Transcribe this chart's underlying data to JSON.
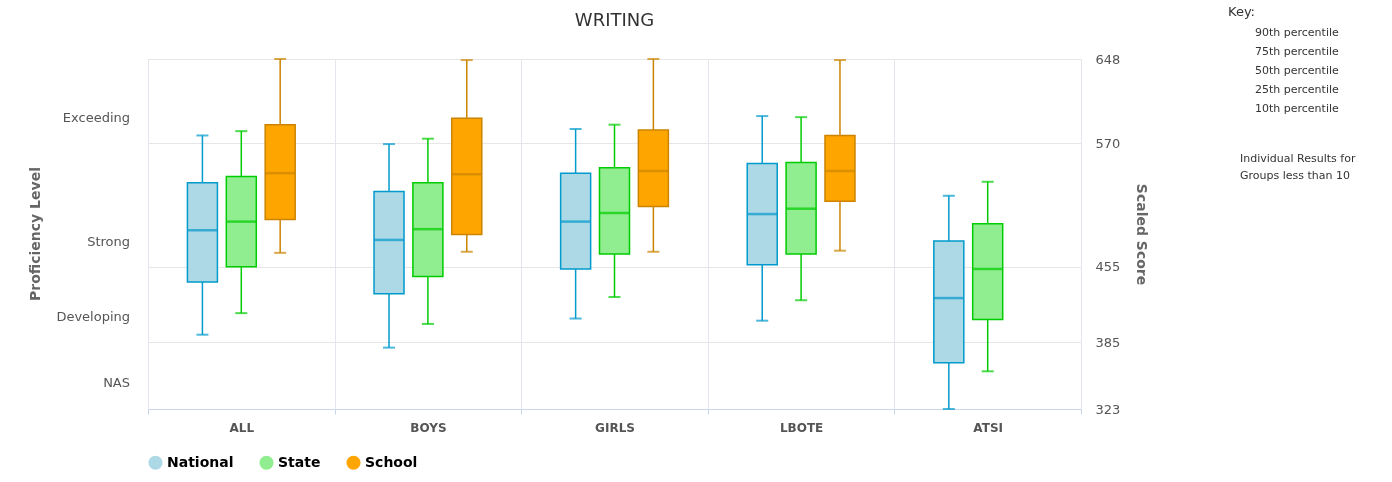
{
  "chart_data": {
    "type": "box",
    "title": "WRITING",
    "y2label": "Scaled Score",
    "categories": [
      "ALL",
      "BOYS",
      "GIRLS",
      "LBOTE",
      "ATSI"
    ],
    "series": [
      {
        "name": "National",
        "color": "#add8e6",
        "boxes": [
          {
            "low": 392,
            "q1": 441,
            "median": 489,
            "q3": 533,
            "high": 577
          },
          {
            "low": 380,
            "q1": 430,
            "median": 480,
            "q3": 525,
            "high": 569
          },
          {
            "low": 407,
            "q1": 453,
            "median": 497,
            "q3": 542,
            "high": 583
          },
          {
            "low": 405,
            "q1": 457,
            "median": 504,
            "q3": 551,
            "high": 595
          },
          {
            "low": 323,
            "q1": 366,
            "median": 426,
            "q3": 479,
            "high": 521
          }
        ]
      },
      {
        "name": "State",
        "color": "#90ee90",
        "boxes": [
          {
            "low": 412,
            "q1": 455,
            "median": 497,
            "q3": 539,
            "high": 581
          },
          {
            "low": 402,
            "q1": 446,
            "median": 490,
            "q3": 533,
            "high": 574
          },
          {
            "low": 427,
            "q1": 467,
            "median": 505,
            "q3": 547,
            "high": 587
          },
          {
            "low": 424,
            "q1": 467,
            "median": 509,
            "q3": 552,
            "high": 594
          },
          {
            "low": 358,
            "q1": 406,
            "median": 453,
            "q3": 495,
            "high": 534
          }
        ]
      },
      {
        "name": "School",
        "color": "#ffa500",
        "boxes": [
          {
            "low": 468,
            "q1": 499,
            "median": 542,
            "q3": 587,
            "high": 648
          },
          {
            "low": 469,
            "q1": 485,
            "median": 541,
            "q3": 593,
            "high": 647
          },
          {
            "low": 469,
            "q1": 511,
            "median": 544,
            "q3": 582,
            "high": 648
          },
          {
            "low": 470,
            "q1": 516,
            "median": 544,
            "q3": 577,
            "high": 647
          },
          null
        ]
      }
    ],
    "ylim": [
      323,
      648
    ],
    "yticks": [
      323,
      385,
      455,
      570,
      648
    ],
    "grid": true,
    "legend": "bottom",
    "annotations": [
      "Proficiency Level",
      "Exceeding",
      "Strong",
      "Developing",
      "NAS",
      "Key:",
      "90th percentile",
      "75th percentile",
      "50th percentile",
      "25th percentile",
      "10th percentile",
      "Individual Results for Groups less than 10"
    ]
  }
}
